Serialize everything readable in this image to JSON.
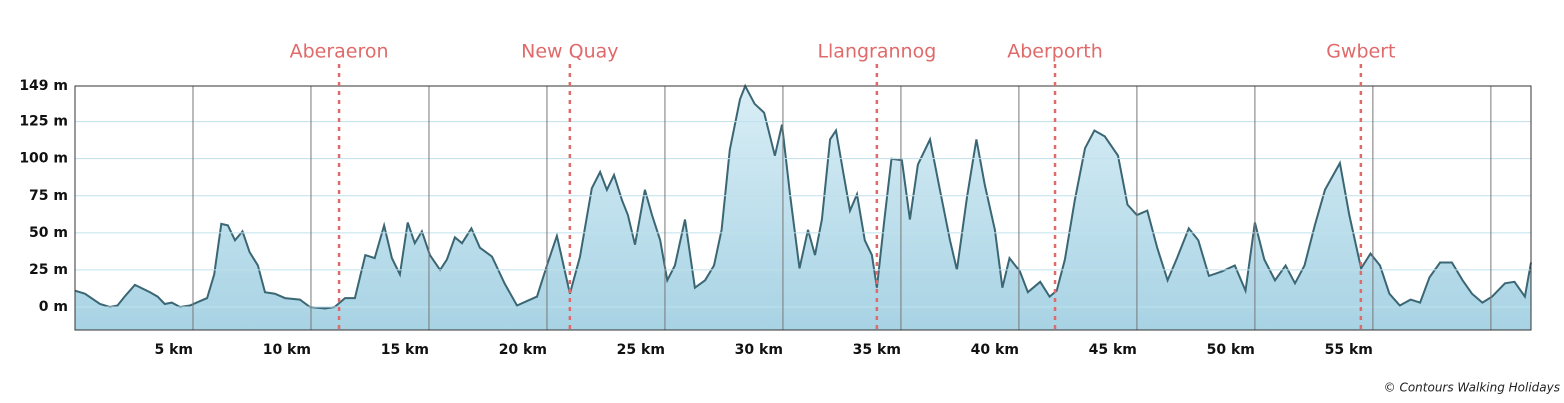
{
  "chart_data": {
    "type": "area",
    "color": "#3b6674",
    "fill_top": "#d9eef6",
    "fill_bottom": "#a8d3e4",
    "marker_color": "#e06a6a",
    "grid": true,
    "xlim": [
      0,
      61.7
    ],
    "ylim": [
      -15.5,
      149
    ],
    "xticks": [
      {
        "value": 5,
        "label": "5 km"
      },
      {
        "value": 10,
        "label": "10 km"
      },
      {
        "value": 15,
        "label": "15 km"
      },
      {
        "value": 20,
        "label": "20 km"
      },
      {
        "value": 25,
        "label": "25 km"
      },
      {
        "value": 30,
        "label": "30 km"
      },
      {
        "value": 35,
        "label": "35 km"
      },
      {
        "value": 40,
        "label": "40 km"
      },
      {
        "value": 45,
        "label": "45 km"
      },
      {
        "value": 50,
        "label": "50 km"
      },
      {
        "value": 55,
        "label": "55 km"
      },
      {
        "value": 60,
        "label": null
      }
    ],
    "yticks": [
      {
        "value": 0,
        "label": "0 m"
      },
      {
        "value": 25,
        "label": "25 m"
      },
      {
        "value": 50,
        "label": "50 m"
      },
      {
        "value": 75,
        "label": "75 m"
      },
      {
        "value": 100,
        "label": "100 m"
      },
      {
        "value": 125,
        "label": "125 m"
      },
      {
        "value": 149,
        "label": "149 m"
      }
    ],
    "x": [
      0,
      0.42,
      1.06,
      1.48,
      1.8,
      2.1,
      2.54,
      3.18,
      3.5,
      3.8,
      4.1,
      4.45,
      4.87,
      5.3,
      5.6,
      5.9,
      6.2,
      6.48,
      6.78,
      7.1,
      7.4,
      7.75,
      8.05,
      8.47,
      8.9,
      9.53,
      9.96,
      10.6,
      11.0,
      11.44,
      11.86,
      12.3,
      12.7,
      13.1,
      13.43,
      13.77,
      14.1,
      14.4,
      14.7,
      15.04,
      15.47,
      15.76,
      16.1,
      16.4,
      16.8,
      17.16,
      17.67,
      18.2,
      18.73,
      19.15,
      19.58,
      20.04,
      20.42,
      20.76,
      20.97,
      21.4,
      21.9,
      22.25,
      22.54,
      22.84,
      23.18,
      23.43,
      23.73,
      24.15,
      24.45,
      24.8,
      25.1,
      25.42,
      25.85,
      26.27,
      26.7,
      27.08,
      27.4,
      27.75,
      28.18,
      28.4,
      28.8,
      29.2,
      29.66,
      29.96,
      30.3,
      30.7,
      31.06,
      31.36,
      31.65,
      32.0,
      32.25,
      32.54,
      32.84,
      33.14,
      33.47,
      33.77,
      33.98,
      34.3,
      34.6,
      35.04,
      35.38,
      35.72,
      36.23,
      36.65,
      37.08,
      37.37,
      37.8,
      38.2,
      38.56,
      38.98,
      39.3,
      39.6,
      40.04,
      40.38,
      40.9,
      41.3,
      41.6,
      41.95,
      42.37,
      42.8,
      43.2,
      43.64,
      44.2,
      44.6,
      45.0,
      45.44,
      45.86,
      46.3,
      46.7,
      47.2,
      47.6,
      48.05,
      48.6,
      49.15,
      49.6,
      50.0,
      50.4,
      50.85,
      51.3,
      51.7,
      52.1,
      52.54,
      52.97,
      53.6,
      54.0,
      54.5,
      54.9,
      55.3,
      55.7,
      56.14,
      56.6,
      57.0,
      57.4,
      57.85,
      58.35,
      58.8,
      59.2,
      59.64,
      60.05,
      60.6,
      61.0,
      61.44,
      61.7
    ],
    "values": [
      11,
      9,
      2,
      0,
      1,
      7,
      15,
      10,
      7,
      2,
      3,
      0,
      1,
      4,
      6,
      22,
      56,
      55,
      45,
      51,
      37,
      28,
      10,
      9,
      6,
      5,
      0,
      -1,
      0,
      6,
      6,
      35,
      33,
      55,
      33,
      22,
      57,
      43,
      51,
      35,
      25,
      32,
      47,
      43,
      53,
      40,
      34,
      16,
      1,
      4,
      7,
      30,
      48,
      24,
      9,
      34,
      80,
      91,
      79,
      89,
      72,
      62,
      42,
      79,
      62,
      45,
      18,
      28,
      59,
      13,
      18,
      28,
      52,
      106,
      140,
      149,
      137,
      131,
      102,
      123,
      76,
      26,
      52,
      35,
      59,
      113,
      119,
      92,
      65,
      76,
      45,
      35,
      13,
      59,
      100,
      99,
      59,
      96,
      113,
      79,
      45,
      25,
      74,
      113,
      82,
      52,
      13,
      33,
      24,
      10,
      17,
      7,
      11,
      32,
      72,
      107,
      119,
      115,
      102,
      69,
      62,
      65,
      40,
      18,
      33,
      53,
      45,
      21,
      24,
      28,
      11,
      57,
      32,
      18,
      28,
      16,
      28,
      55,
      79,
      97,
      62,
      26,
      36,
      28,
      9,
      1,
      5,
      3,
      20,
      30,
      30,
      18,
      9,
      3,
      7,
      16,
      17,
      7,
      30
    ],
    "markers": [
      {
        "label": "Aberaeron",
        "x": 11.19
      },
      {
        "label": "New Quay",
        "x": 20.97
      },
      {
        "label": "Llangrannog",
        "x": 33.98
      },
      {
        "label": "Aberporth",
        "x": 41.53
      },
      {
        "label": "Gwbert",
        "x": 54.49
      }
    ],
    "credit": "© Contours Walking Holidays"
  }
}
